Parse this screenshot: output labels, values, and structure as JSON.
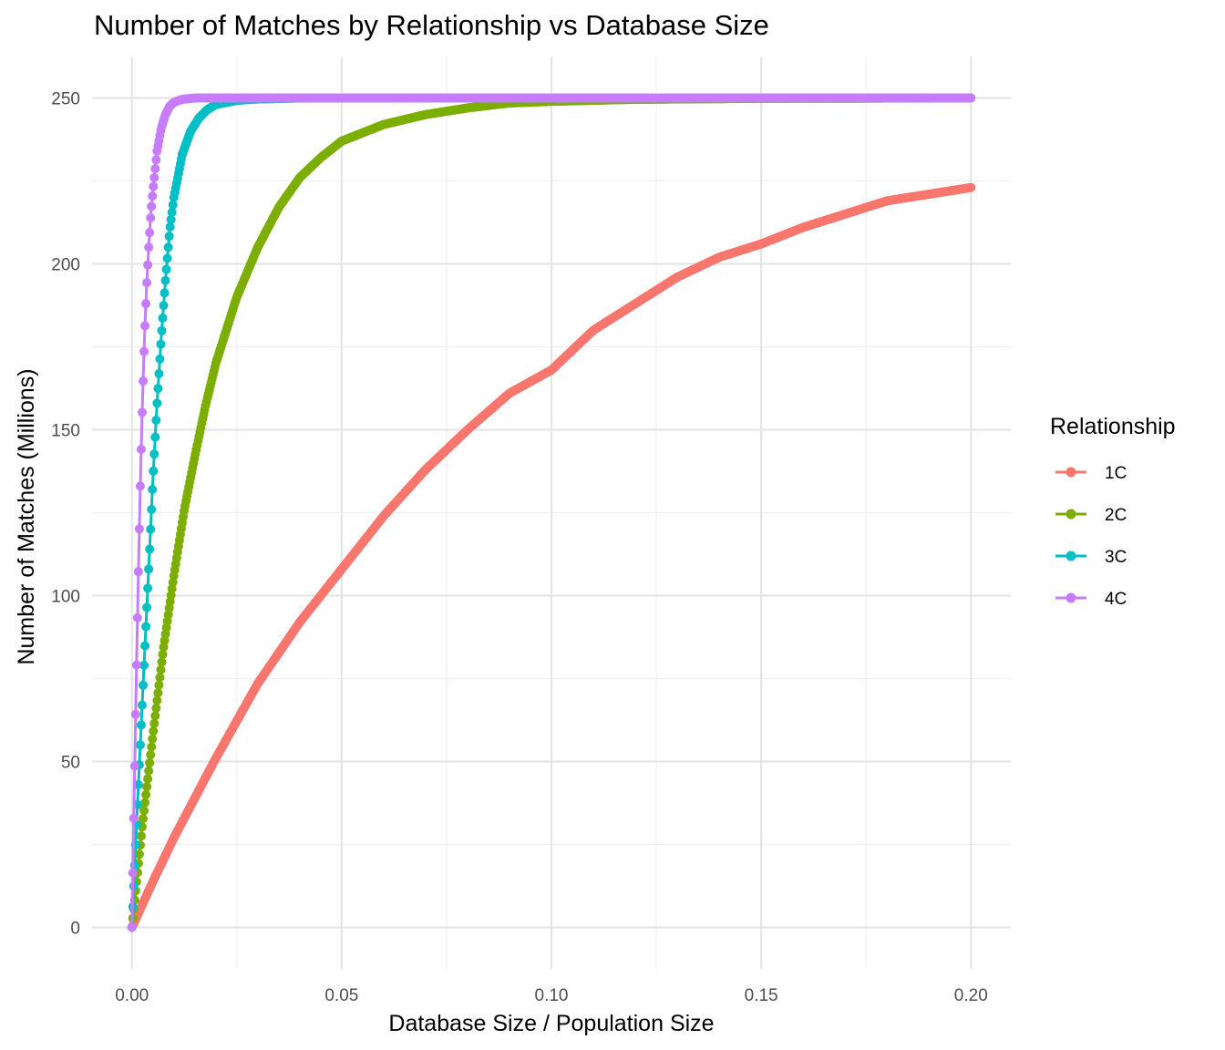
{
  "chart_data": {
    "type": "scatter",
    "title": "Number of Matches by Relationship vs Database Size",
    "xlabel": "Database Size / Population Size",
    "ylabel": "Number of Matches (Millions)",
    "xlim": [
      -0.0095,
      0.2095
    ],
    "ylim": [
      -12.5,
      262.5
    ],
    "x_ticks": [
      0.0,
      0.05,
      0.1,
      0.15,
      0.2
    ],
    "x_tick_labels": [
      "0.00",
      "0.05",
      "0.10",
      "0.15",
      "0.20"
    ],
    "y_ticks": [
      0,
      50,
      100,
      150,
      200,
      250
    ],
    "y_tick_labels": [
      "0",
      "50",
      "100",
      "150",
      "200",
      "250"
    ],
    "grid": true,
    "legend": {
      "title": "Relationship",
      "placement": "right"
    },
    "series": [
      {
        "name": "1C",
        "color": "#F8766D",
        "x": [
          0,
          0.005,
          0.01,
          0.02,
          0.03,
          0.04,
          0.05,
          0.06,
          0.07,
          0.08,
          0.09,
          0.1,
          0.11,
          0.12,
          0.13,
          0.14,
          0.15,
          0.16,
          0.17,
          0.18,
          0.19,
          0.2
        ],
        "y": [
          0,
          13.8,
          27,
          51,
          73.5,
          92,
          108,
          124,
          138,
          150,
          161,
          168,
          180,
          188,
          196,
          202,
          206,
          211,
          215,
          219,
          221,
          223
        ]
      },
      {
        "name": "2C",
        "color": "#7CAE00",
        "x": [
          0,
          0.0025,
          0.005,
          0.0075,
          0.01,
          0.0125,
          0.015,
          0.0175,
          0.02,
          0.025,
          0.03,
          0.035,
          0.04,
          0.045,
          0.05,
          0.06,
          0.07,
          0.08,
          0.09,
          0.1,
          0.12,
          0.15,
          0.2
        ],
        "y": [
          0,
          31,
          58,
          84,
          106,
          126,
          142,
          157,
          170,
          190,
          205,
          217,
          226,
          232,
          237,
          242,
          245,
          247,
          248.5,
          249,
          249.6,
          249.9,
          250
        ]
      },
      {
        "name": "3C",
        "color": "#00BFC4",
        "x": [
          0,
          0.001,
          0.002,
          0.003,
          0.004,
          0.005,
          0.006,
          0.007,
          0.008,
          0.009,
          0.01,
          0.012,
          0.014,
          0.016,
          0.018,
          0.02,
          0.025,
          0.03,
          0.04,
          0.06,
          0.1,
          0.2
        ],
        "y": [
          0,
          28,
          55,
          82,
          108,
          135,
          158,
          178,
          195,
          210,
          220,
          233,
          240,
          244,
          246.5,
          248,
          249.3,
          249.7,
          250,
          250,
          250,
          250
        ]
      },
      {
        "name": "4C",
        "color": "#C77CFF",
        "x": [
          0,
          0.0005,
          0.001,
          0.0015,
          0.002,
          0.0025,
          0.003,
          0.0035,
          0.004,
          0.0045,
          0.005,
          0.006,
          0.007,
          0.008,
          0.009,
          0.01,
          0.012,
          0.015,
          0.02,
          0.03,
          0.05,
          0.1,
          0.2
        ],
        "y": [
          0,
          37,
          72,
          104,
          133,
          158,
          178,
          193,
          205,
          215,
          222,
          234,
          241,
          245,
          247.5,
          248.7,
          249.6,
          250,
          250,
          250,
          250,
          250,
          250
        ]
      }
    ]
  }
}
